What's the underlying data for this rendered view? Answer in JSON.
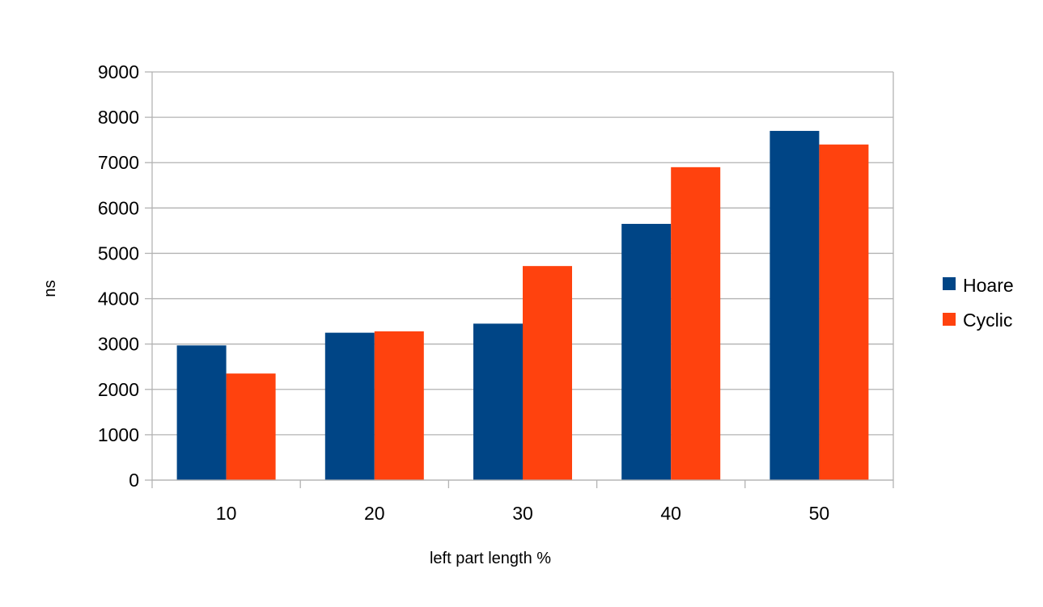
{
  "chart_data": {
    "type": "bar",
    "categories": [
      "10",
      "20",
      "30",
      "40",
      "50"
    ],
    "series": [
      {
        "name": "Hoare",
        "values": [
          2970,
          3250,
          3450,
          5650,
          7700
        ],
        "color": "#004586"
      },
      {
        "name": "Cyclic",
        "values": [
          2350,
          3280,
          4720,
          6900,
          7400
        ],
        "color": "#ff420e"
      }
    ],
    "xlabel": "left part length %",
    "ylabel": "ns",
    "ylim": [
      0,
      9000
    ],
    "yticks": [
      0,
      1000,
      2000,
      3000,
      4000,
      5000,
      6000,
      7000,
      8000,
      9000
    ],
    "grid": true,
    "legend_position": "right",
    "colors": {
      "grid": "#b3b3b3",
      "axis": "#b3b3b3"
    }
  }
}
